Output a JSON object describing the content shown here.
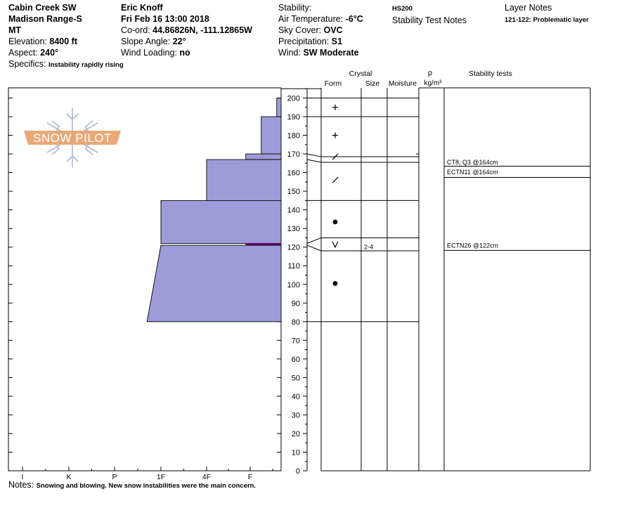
{
  "header": {
    "location": {
      "name": "Cabin Creek SW",
      "range": "Madison Range-S",
      "state": "MT"
    },
    "elevation_label": "Elevation:",
    "elevation": "8400 ft",
    "aspect_label": "Aspect:",
    "aspect": "240°",
    "specifics_label": "Specifics:",
    "specifics": "Instability rapidly rising",
    "observer": "Eric Knoff",
    "datetime": "Fri Feb 16 13:00 2018",
    "coord_label": "Co-ord:",
    "coord": "44.86826N, -111.12865W",
    "slope_label": "Slope Angle:",
    "slope": "22°",
    "wind_loading_label": "Wind Loading:",
    "wind_loading": "no",
    "stability_label": "Stability:",
    "stability": "",
    "air_temp_label": "Air Temperature:",
    "air_temp": "-6°C",
    "sky_label": "Sky Cover:",
    "sky": "OVC",
    "precip_label": "Precipitation:",
    "precip": "S1",
    "wind_label": "Wind:",
    "wind": "SW Moderate",
    "hs": "HS200",
    "stability_notes": "Stability Test Notes",
    "layer_notes_title": "Layer Notes",
    "layer_notes": "121-122: Problematic layer"
  },
  "logo": {
    "text": "SNOW PILOT"
  },
  "columns": {
    "crystal": "Crystal",
    "form": "Form",
    "size": "Size",
    "moisture": "Moisture",
    "rho": "ρ",
    "rho_unit": "kg/m³",
    "stability_tests": "Stability tests"
  },
  "hardness_axis": [
    "I",
    "K",
    "P",
    "1F",
    "4F",
    "F"
  ],
  "depth_ticks": [
    0,
    10,
    20,
    30,
    40,
    50,
    60,
    70,
    80,
    90,
    100,
    110,
    120,
    130,
    140,
    150,
    160,
    170,
    180,
    190,
    200
  ],
  "depth_max": 205,
  "layers": [
    {
      "top": 200,
      "bottom": 190,
      "hardness_top": 5.6,
      "hardness_bottom": 5.6,
      "form": "+",
      "size": ""
    },
    {
      "top": 190,
      "bottom": 170,
      "hardness_top": 5.25,
      "hardness_bottom": 5.25,
      "form": "+",
      "size": ""
    },
    {
      "top": 170,
      "bottom": 167,
      "hardness_top": 4.9,
      "hardness_bottom": 4.9,
      "form": "/",
      "size": ""
    },
    {
      "top": 167,
      "bottom": 145,
      "hardness_top": 4.0,
      "hardness_bottom": 4.0,
      "form": "/",
      "size": ""
    },
    {
      "top": 145,
      "bottom": 122,
      "hardness_top": 3.0,
      "hardness_bottom": 3.0,
      "form": "●",
      "size": ""
    },
    {
      "top": 122,
      "bottom": 121,
      "hardness_top": 4.9,
      "hardness_bottom": 4.9,
      "form": "V",
      "size": "2-4",
      "problem": true
    },
    {
      "top": 121,
      "bottom": 80,
      "hardness_top": 3.0,
      "hardness_bottom": 2.7,
      "form": "●",
      "size": ""
    }
  ],
  "form_symbols": [
    {
      "depth": 195,
      "symbol": "+"
    },
    {
      "depth": 180,
      "symbol": "+"
    },
    {
      "depth": 168.5,
      "symbol": "/"
    },
    {
      "depth": 156,
      "symbol": "/"
    },
    {
      "depth": 133.5,
      "symbol": "●"
    },
    {
      "depth": 121.5,
      "symbol": "V"
    },
    {
      "depth": 100.5,
      "symbol": "●"
    }
  ],
  "stability_tests": [
    {
      "depth": 164,
      "label": "CT8, Q3 @164cm"
    },
    {
      "depth": 164,
      "label": "ECTN11 @164cm"
    },
    {
      "depth": 122,
      "label": "ECTN26 @122cm"
    }
  ],
  "notes_label": "Notes:",
  "notes": "Snowing and blowing. New snow instabilities were the main concern.",
  "colors": {
    "layer_fill": "#9c9cd8",
    "layer_stroke": "#000000",
    "problem_layer": "#660066",
    "logo": "#e8a06a",
    "flake": "#aeb7cc"
  }
}
